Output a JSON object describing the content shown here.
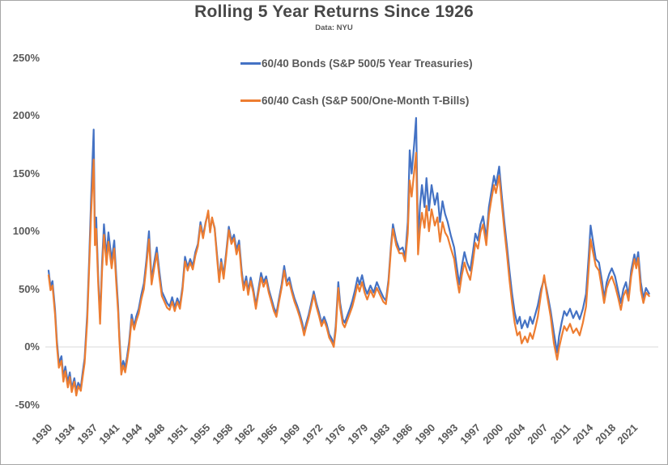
{
  "colors": {
    "bonds_line": "#4472C4",
    "cash_line": "#ED7D31",
    "grid_line": "#D9D9D9",
    "text": "#595959",
    "title_text": "#484848",
    "frame_border": "#A6A6A6"
  },
  "chart_data": {
    "type": "line",
    "title": "Rolling 5 Year Returns Since 1926",
    "subtitle": "Data: NYU",
    "xlabel": "",
    "ylabel": "",
    "grid": "horizontal zero-line only",
    "legend_position": "top-center, stacked",
    "ylim": [
      -50,
      250
    ],
    "ytick_step": 50,
    "y_tick_labels": [
      "250%",
      "200%",
      "150%",
      "100%",
      "50%",
      "0%",
      "-50%"
    ],
    "x_tick_labels": [
      "1930",
      "1934",
      "1937",
      "1941",
      "1944",
      "1948",
      "1951",
      "1955",
      "1958",
      "1962",
      "1965",
      "1969",
      "1972",
      "1976",
      "1979",
      "1983",
      "1986",
      "1990",
      "1993",
      "1997",
      "2000",
      "2004",
      "2007",
      "2011",
      "2014",
      "2018",
      "2021"
    ],
    "x_start_year": 1930,
    "x_tick_interval_years": 3.5,
    "x_end_year": 2023.3,
    "series_meta": [
      {
        "name": "60/40 Bonds (S&P 500/5 Year Treasuries)",
        "color": "#4472C4"
      },
      {
        "name": "60/40 Cash (S&P 500/One-Month T-Bills)",
        "color": "#ED7D31"
      }
    ],
    "points_format": [
      "year",
      "bonds_pct",
      "cash_pct"
    ],
    "points": [
      [
        1930.0,
        66,
        62
      ],
      [
        1930.3,
        52,
        49
      ],
      [
        1930.6,
        57,
        53
      ],
      [
        1931.0,
        32,
        28
      ],
      [
        1931.3,
        5,
        1
      ],
      [
        1931.6,
        -14,
        -18
      ],
      [
        1932.0,
        -8,
        -12
      ],
      [
        1932.3,
        -26,
        -30
      ],
      [
        1932.6,
        -17,
        -21
      ],
      [
        1933.0,
        -31,
        -35
      ],
      [
        1933.3,
        -22,
        -26
      ],
      [
        1933.6,
        -36,
        -39
      ],
      [
        1934.0,
        -27,
        -30
      ],
      [
        1934.3,
        -38,
        -42
      ],
      [
        1934.6,
        -31,
        -34
      ],
      [
        1935.0,
        -35,
        -38
      ],
      [
        1935.3,
        -22,
        -26
      ],
      [
        1935.6,
        -10,
        -14
      ],
      [
        1936.0,
        28,
        22
      ],
      [
        1936.3,
        75,
        68
      ],
      [
        1936.6,
        128,
        115
      ],
      [
        1937.0,
        188,
        162
      ],
      [
        1937.2,
        95,
        88
      ],
      [
        1937.4,
        112,
        102
      ],
      [
        1937.7,
        62,
        56
      ],
      [
        1938.0,
        24,
        20
      ],
      [
        1938.3,
        72,
        65
      ],
      [
        1938.6,
        106,
        97
      ],
      [
        1939.0,
        78,
        71
      ],
      [
        1939.3,
        99,
        91
      ],
      [
        1939.8,
        75,
        68
      ],
      [
        1940.2,
        92,
        85
      ],
      [
        1940.5,
        62,
        56
      ],
      [
        1940.8,
        35,
        30
      ],
      [
        1941.0,
        10,
        6
      ],
      [
        1941.3,
        -20,
        -24
      ],
      [
        1941.6,
        -12,
        -16
      ],
      [
        1941.9,
        -18,
        -22
      ],
      [
        1942.2,
        -8,
        -12
      ],
      [
        1942.5,
        4,
        0
      ],
      [
        1942.9,
        28,
        24
      ],
      [
        1943.3,
        18,
        15
      ],
      [
        1943.6,
        26,
        22
      ],
      [
        1944.0,
        33,
        29
      ],
      [
        1944.4,
        45,
        41
      ],
      [
        1944.8,
        55,
        50
      ],
      [
        1945.2,
        75,
        70
      ],
      [
        1945.6,
        100,
        93
      ],
      [
        1946.0,
        58,
        54
      ],
      [
        1946.4,
        73,
        68
      ],
      [
        1946.8,
        86,
        81
      ],
      [
        1947.2,
        66,
        61
      ],
      [
        1947.6,
        48,
        44
      ],
      [
        1948.0,
        43,
        39
      ],
      [
        1948.4,
        38,
        34
      ],
      [
        1948.8,
        35,
        32
      ],
      [
        1949.2,
        43,
        39
      ],
      [
        1949.6,
        34,
        31
      ],
      [
        1950.0,
        42,
        39
      ],
      [
        1950.4,
        36,
        33
      ],
      [
        1950.8,
        52,
        49
      ],
      [
        1951.2,
        78,
        74
      ],
      [
        1951.6,
        69,
        66
      ],
      [
        1952.0,
        76,
        73
      ],
      [
        1952.4,
        70,
        67
      ],
      [
        1952.8,
        82,
        79
      ],
      [
        1953.2,
        89,
        87
      ],
      [
        1953.6,
        108,
        105
      ],
      [
        1954.0,
        96,
        94
      ],
      [
        1954.4,
        108,
        107
      ],
      [
        1954.8,
        116,
        118
      ],
      [
        1955.1,
        100,
        99
      ],
      [
        1955.4,
        111,
        112
      ],
      [
        1955.8,
        103,
        102
      ],
      [
        1956.2,
        78,
        75
      ],
      [
        1956.5,
        58,
        56
      ],
      [
        1956.8,
        76,
        73
      ],
      [
        1957.2,
        62,
        59
      ],
      [
        1957.6,
        82,
        79
      ],
      [
        1958.0,
        104,
        101
      ],
      [
        1958.4,
        92,
        89
      ],
      [
        1958.8,
        97,
        94
      ],
      [
        1959.2,
        84,
        80
      ],
      [
        1959.6,
        92,
        88
      ],
      [
        1960.0,
        66,
        62
      ],
      [
        1960.3,
        52,
        49
      ],
      [
        1960.7,
        61,
        57
      ],
      [
        1961.0,
        48,
        45
      ],
      [
        1961.4,
        60,
        57
      ],
      [
        1961.8,
        50,
        47
      ],
      [
        1962.2,
        36,
        33
      ],
      [
        1962.6,
        50,
        47
      ],
      [
        1963.0,
        64,
        60
      ],
      [
        1963.4,
        56,
        52
      ],
      [
        1963.8,
        61,
        58
      ],
      [
        1964.2,
        50,
        47
      ],
      [
        1964.6,
        42,
        39
      ],
      [
        1965.0,
        34,
        31
      ],
      [
        1965.4,
        29,
        26
      ],
      [
        1965.8,
        42,
        39
      ],
      [
        1966.2,
        54,
        51
      ],
      [
        1966.6,
        70,
        66
      ],
      [
        1967.0,
        56,
        53
      ],
      [
        1967.4,
        60,
        56
      ],
      [
        1967.8,
        50,
        47
      ],
      [
        1968.2,
        42,
        39
      ],
      [
        1968.6,
        36,
        33
      ],
      [
        1969.0,
        29,
        26
      ],
      [
        1969.4,
        21,
        18
      ],
      [
        1969.7,
        13,
        10
      ],
      [
        1970.0,
        20,
        17
      ],
      [
        1970.4,
        28,
        25
      ],
      [
        1970.8,
        38,
        35
      ],
      [
        1971.2,
        48,
        45
      ],
      [
        1971.6,
        38,
        35
      ],
      [
        1972.0,
        30,
        27
      ],
      [
        1972.4,
        21,
        18
      ],
      [
        1972.8,
        26,
        23
      ],
      [
        1973.2,
        20,
        17
      ],
      [
        1973.6,
        11,
        8
      ],
      [
        1974.0,
        7,
        4
      ],
      [
        1974.3,
        2,
        0
      ],
      [
        1974.6,
        18,
        14
      ],
      [
        1975.0,
        56,
        51
      ],
      [
        1975.3,
        38,
        34
      ],
      [
        1975.7,
        24,
        20
      ],
      [
        1976.0,
        21,
        17
      ],
      [
        1976.4,
        27,
        23
      ],
      [
        1976.8,
        33,
        29
      ],
      [
        1977.2,
        40,
        35
      ],
      [
        1977.6,
        49,
        44
      ],
      [
        1978.0,
        60,
        54
      ],
      [
        1978.3,
        54,
        48
      ],
      [
        1978.7,
        62,
        56
      ],
      [
        1979.1,
        52,
        47
      ],
      [
        1979.5,
        46,
        41
      ],
      [
        1980.0,
        53,
        49
      ],
      [
        1980.5,
        47,
        43
      ],
      [
        1981.0,
        56,
        51
      ],
      [
        1981.5,
        49,
        45
      ],
      [
        1982.0,
        43,
        39
      ],
      [
        1982.4,
        40,
        37
      ],
      [
        1982.8,
        58,
        55
      ],
      [
        1983.2,
        88,
        85
      ],
      [
        1983.5,
        106,
        102
      ],
      [
        1984.0,
        92,
        88
      ],
      [
        1984.5,
        84,
        81
      ],
      [
        1985.0,
        86,
        81
      ],
      [
        1985.4,
        78,
        74
      ],
      [
        1985.8,
        108,
        98
      ],
      [
        1986.1,
        170,
        144
      ],
      [
        1986.4,
        150,
        130
      ],
      [
        1986.8,
        176,
        152
      ],
      [
        1987.1,
        198,
        168
      ],
      [
        1987.4,
        90,
        80
      ],
      [
        1987.7,
        122,
        102
      ],
      [
        1988.0,
        140,
        116
      ],
      [
        1988.4,
        121,
        103
      ],
      [
        1988.7,
        146,
        122
      ],
      [
        1989.1,
        118,
        100
      ],
      [
        1989.5,
        140,
        119
      ],
      [
        1990.0,
        123,
        105
      ],
      [
        1990.4,
        133,
        112
      ],
      [
        1990.8,
        108,
        91
      ],
      [
        1991.2,
        126,
        108
      ],
      [
        1991.6,
        115,
        99
      ],
      [
        1992.0,
        108,
        95
      ],
      [
        1992.5,
        96,
        85
      ],
      [
        1993.0,
        86,
        76
      ],
      [
        1993.4,
        70,
        60
      ],
      [
        1993.8,
        54,
        47
      ],
      [
        1994.2,
        70,
        62
      ],
      [
        1994.6,
        82,
        73
      ],
      [
        1995.0,
        73,
        65
      ],
      [
        1995.5,
        66,
        58
      ],
      [
        1995.9,
        81,
        73
      ],
      [
        1996.3,
        98,
        90
      ],
      [
        1996.7,
        92,
        85
      ],
      [
        1997.1,
        106,
        99
      ],
      [
        1997.5,
        113,
        106
      ],
      [
        1998.0,
        94,
        88
      ],
      [
        1998.4,
        121,
        114
      ],
      [
        1998.8,
        135,
        128
      ],
      [
        1999.2,
        148,
        140
      ],
      [
        1999.5,
        140,
        133
      ],
      [
        2000.0,
        156,
        148
      ],
      [
        2000.4,
        131,
        124
      ],
      [
        2000.8,
        108,
        101
      ],
      [
        2001.2,
        88,
        81
      ],
      [
        2001.6,
        66,
        58
      ],
      [
        2002.0,
        46,
        38
      ],
      [
        2002.4,
        30,
        21
      ],
      [
        2002.8,
        20,
        10
      ],
      [
        2003.2,
        26,
        13
      ],
      [
        2003.5,
        16,
        3
      ],
      [
        2004.0,
        23,
        9
      ],
      [
        2004.4,
        17,
        4
      ],
      [
        2004.8,
        26,
        12
      ],
      [
        2005.2,
        20,
        7
      ],
      [
        2005.6,
        28,
        16
      ],
      [
        2006.0,
        36,
        26
      ],
      [
        2006.5,
        50,
        46
      ],
      [
        2007.0,
        59,
        62
      ],
      [
        2007.4,
        49,
        46
      ],
      [
        2008.0,
        31,
        26
      ],
      [
        2008.5,
        12,
        3
      ],
      [
        2009.0,
        -5,
        -11
      ],
      [
        2009.3,
        9,
        -1
      ],
      [
        2009.7,
        21,
        9
      ],
      [
        2010.1,
        31,
        18
      ],
      [
        2010.5,
        27,
        14
      ],
      [
        2011.0,
        33,
        20
      ],
      [
        2011.5,
        25,
        12
      ],
      [
        2012.0,
        31,
        16
      ],
      [
        2012.5,
        24,
        10
      ],
      [
        2013.0,
        33,
        21
      ],
      [
        2013.5,
        46,
        35
      ],
      [
        2013.9,
        78,
        67
      ],
      [
        2014.2,
        105,
        93
      ],
      [
        2014.5,
        94,
        84
      ],
      [
        2015.0,
        76,
        70
      ],
      [
        2015.5,
        73,
        66
      ],
      [
        2016.0,
        56,
        49
      ],
      [
        2016.3,
        42,
        38
      ],
      [
        2016.7,
        56,
        51
      ],
      [
        2017.1,
        63,
        57
      ],
      [
        2017.5,
        68,
        61
      ],
      [
        2018.0,
        61,
        53
      ],
      [
        2018.5,
        48,
        42
      ],
      [
        2018.9,
        38,
        32
      ],
      [
        2019.3,
        50,
        44
      ],
      [
        2019.7,
        56,
        49
      ],
      [
        2020.1,
        44,
        40
      ],
      [
        2020.5,
        66,
        61
      ],
      [
        2021.0,
        80,
        76
      ],
      [
        2021.3,
        72,
        68
      ],
      [
        2021.6,
        82,
        77
      ],
      [
        2022.0,
        56,
        49
      ],
      [
        2022.4,
        42,
        38
      ],
      [
        2022.8,
        51,
        47
      ],
      [
        2023.3,
        46,
        44
      ]
    ]
  }
}
